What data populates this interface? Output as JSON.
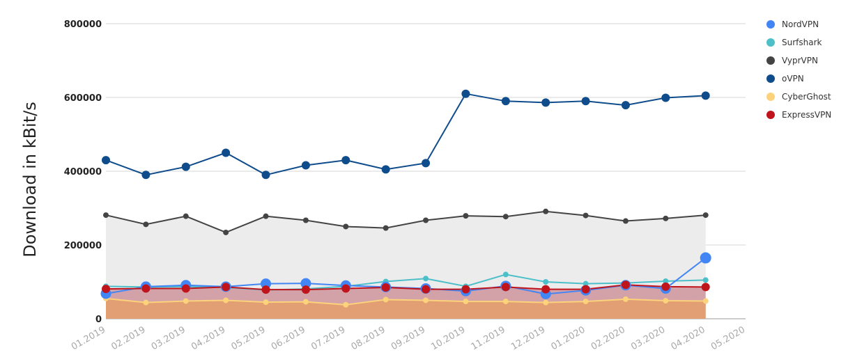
{
  "chart_data": {
    "type": "line",
    "title": "",
    "ylabel": "Download in kBit/s",
    "xlabel": "",
    "ylim": [
      0,
      800000
    ],
    "yticks": [
      0,
      200000,
      400000,
      600000,
      800000
    ],
    "ytick_labels": [
      "0",
      "200000",
      "400000",
      "600000",
      "800000"
    ],
    "grid": true,
    "legend_position": "right",
    "x_tick_labels": [
      "01.2019",
      "02.2019",
      "03.2019",
      "04.2019",
      "05.2019",
      "06.2019",
      "07.2019",
      "08.2019",
      "09.2019",
      "10.2019",
      "11.2019",
      "12.2019",
      "01.2020",
      "02.2020",
      "03.2020",
      "04.2020",
      "05.2020"
    ],
    "categories": [
      "01.2019",
      "02.2019",
      "03.2019",
      "04.2019",
      "05.2019",
      "06.2019",
      "07.2019",
      "08.2019",
      "09.2019",
      "10.2019",
      "11.2019",
      "12.2019",
      "01.2020",
      "02.2020",
      "03.2020",
      "04.2020"
    ],
    "series": [
      {
        "name": "NordVPN",
        "color": "#4285f4",
        "area": false,
        "marker_size": "large",
        "values": [
          68000,
          87000,
          91000,
          87000,
          95000,
          96000,
          90000,
          86000,
          82000,
          75000,
          89000,
          67000,
          77000,
          91000,
          82000,
          165000
        ]
      },
      {
        "name": "Surfshark",
        "color": "#4cbfc9",
        "area": false,
        "marker_size": "small",
        "values": [
          88000,
          86000,
          87000,
          85000,
          78000,
          81000,
          88000,
          101000,
          109000,
          88000,
          120000,
          100000,
          95000,
          97000,
          102000,
          105000
        ]
      },
      {
        "name": "VyprVPN",
        "color": "#444444",
        "area": true,
        "area_color": "#ececec",
        "marker_size": "small",
        "values": [
          281000,
          256000,
          278000,
          234000,
          278000,
          267000,
          250000,
          246000,
          267000,
          279000,
          277000,
          291000,
          280000,
          265000,
          272000,
          281000
        ]
      },
      {
        "name": "oVPN",
        "color": "#0f4c8c",
        "area": false,
        "marker_size": "medium",
        "values": [
          430000,
          390000,
          412000,
          450000,
          390000,
          416000,
          430000,
          405000,
          422000,
          610000,
          590000,
          586000,
          590000,
          579000,
          599000,
          605000
        ]
      },
      {
        "name": "CyberGhost",
        "color": "#fcd27a",
        "area": true,
        "area_color": "#e29f74",
        "marker_size": "small",
        "values": [
          55000,
          44000,
          48000,
          50000,
          45000,
          46000,
          38000,
          52000,
          50000,
          47000,
          47000,
          44000,
          47000,
          53000,
          49000,
          48000
        ]
      },
      {
        "name": "ExpressVPN",
        "color": "#c0141c",
        "area": true,
        "area_color": "#d3a2a9",
        "marker_size": "medium",
        "values": [
          81000,
          82000,
          82000,
          86000,
          79000,
          79000,
          82000,
          85000,
          80000,
          80000,
          86000,
          80000,
          80000,
          92000,
          87000,
          86000
        ]
      }
    ]
  }
}
